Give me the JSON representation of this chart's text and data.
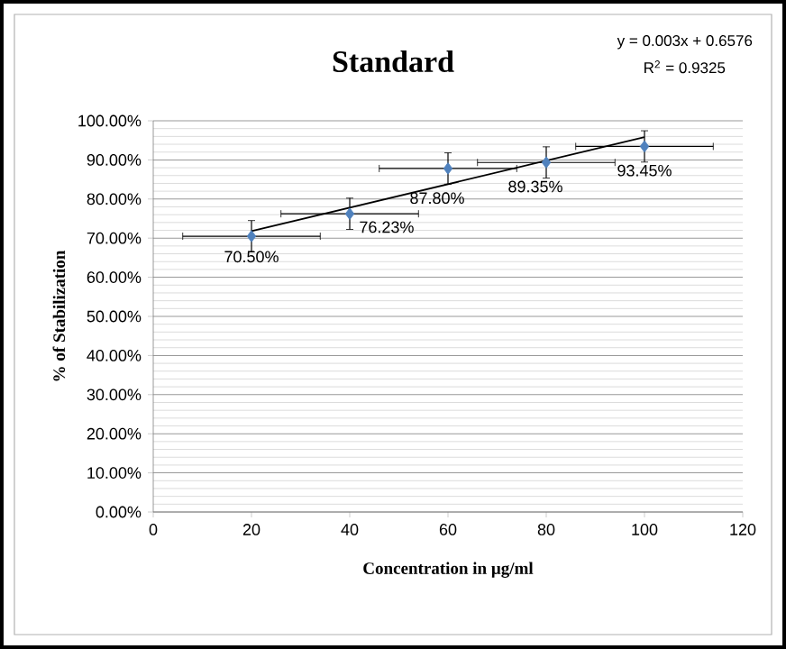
{
  "chart_data": {
    "type": "scatter",
    "title": "Standard",
    "xlabel": "Concentration in µg/ml",
    "ylabel": "% of Stabilization",
    "annotations": [
      "y = 0.003x + 0.6576",
      "R$^{2}$ = 0.9325"
    ],
    "xlim": [
      0,
      120
    ],
    "xticks": [
      0,
      20,
      40,
      60,
      80,
      100,
      120
    ],
    "ylim": [
      0,
      100
    ],
    "yticks": [
      {
        "value": 0,
        "label": "0.00%"
      },
      {
        "value": 10,
        "label": "10.00%"
      },
      {
        "value": 20,
        "label": "20.00%"
      },
      {
        "value": 30,
        "label": "30.00%"
      },
      {
        "value": 40,
        "label": "40.00%"
      },
      {
        "value": 50,
        "label": "50.00%"
      },
      {
        "value": 60,
        "label": "60.00%"
      },
      {
        "value": 70,
        "label": "70.00%"
      },
      {
        "value": 80,
        "label": "80.00%"
      },
      {
        "value": 90,
        "label": "90.00%"
      },
      {
        "value": 100,
        "label": "100.00%"
      }
    ],
    "grid": "y",
    "marker": "diamond",
    "series": [
      {
        "color": "#4f81bd",
        "x": [
          20,
          40,
          60,
          80,
          100
        ],
        "values": [
          70.5,
          76.23,
          87.8,
          89.35,
          93.45
        ],
        "errors": [
          4,
          4,
          4,
          4,
          4
        ],
        "xerrors": [
          14,
          14,
          14,
          14,
          14
        ],
        "value_labels": [
          "70.50%",
          "76.23%",
          "87.80%",
          "89.35%",
          "93.45%"
        ]
      },
      {
        "type": "line",
        "color": "#000000",
        "marker": "none",
        "x": [
          20,
          100
        ],
        "values": [
          71.8,
          95.8
        ]
      }
    ]
  }
}
